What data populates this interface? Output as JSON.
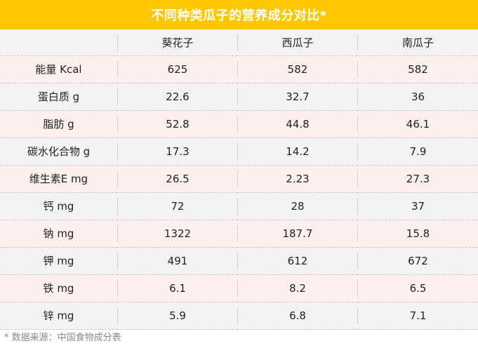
{
  "chart_data": {
    "type": "table",
    "title": "不同种类瓜子的营养成分对比*",
    "columns": [
      "",
      "葵花子",
      "西瓜子",
      "南瓜子"
    ],
    "rows": [
      {
        "label": "能量 Kcal",
        "values": [
          "625",
          "582",
          "582"
        ]
      },
      {
        "label": "蛋白质 g",
        "values": [
          "22.6",
          "32.7",
          "36"
        ]
      },
      {
        "label": "脂肪 g",
        "values": [
          "52.8",
          "44.8",
          "46.1"
        ]
      },
      {
        "label": "碳水化合物 g",
        "values": [
          "17.3",
          "14.2",
          "7.9"
        ]
      },
      {
        "label": "维生素E mg",
        "values": [
          "26.5",
          "2.23",
          "27.3"
        ]
      },
      {
        "label": "钙 mg",
        "values": [
          "72",
          "28",
          "37"
        ]
      },
      {
        "label": "钠 mg",
        "values": [
          "1322",
          "187.7",
          "15.8"
        ]
      },
      {
        "label": "钾 mg",
        "values": [
          "491",
          "612",
          "672"
        ]
      },
      {
        "label": "铁 mg",
        "values": [
          "6.1",
          "8.2",
          "6.5"
        ]
      },
      {
        "label": "锌 mg",
        "values": [
          "5.9",
          "6.8",
          "7.1"
        ]
      }
    ],
    "source_note": "* 数据来源：中国食物成分表"
  },
  "colors": {
    "title_bar": "#ffc700",
    "row_pink": "#fff0f0",
    "row_gray": "#f3f3f3"
  }
}
